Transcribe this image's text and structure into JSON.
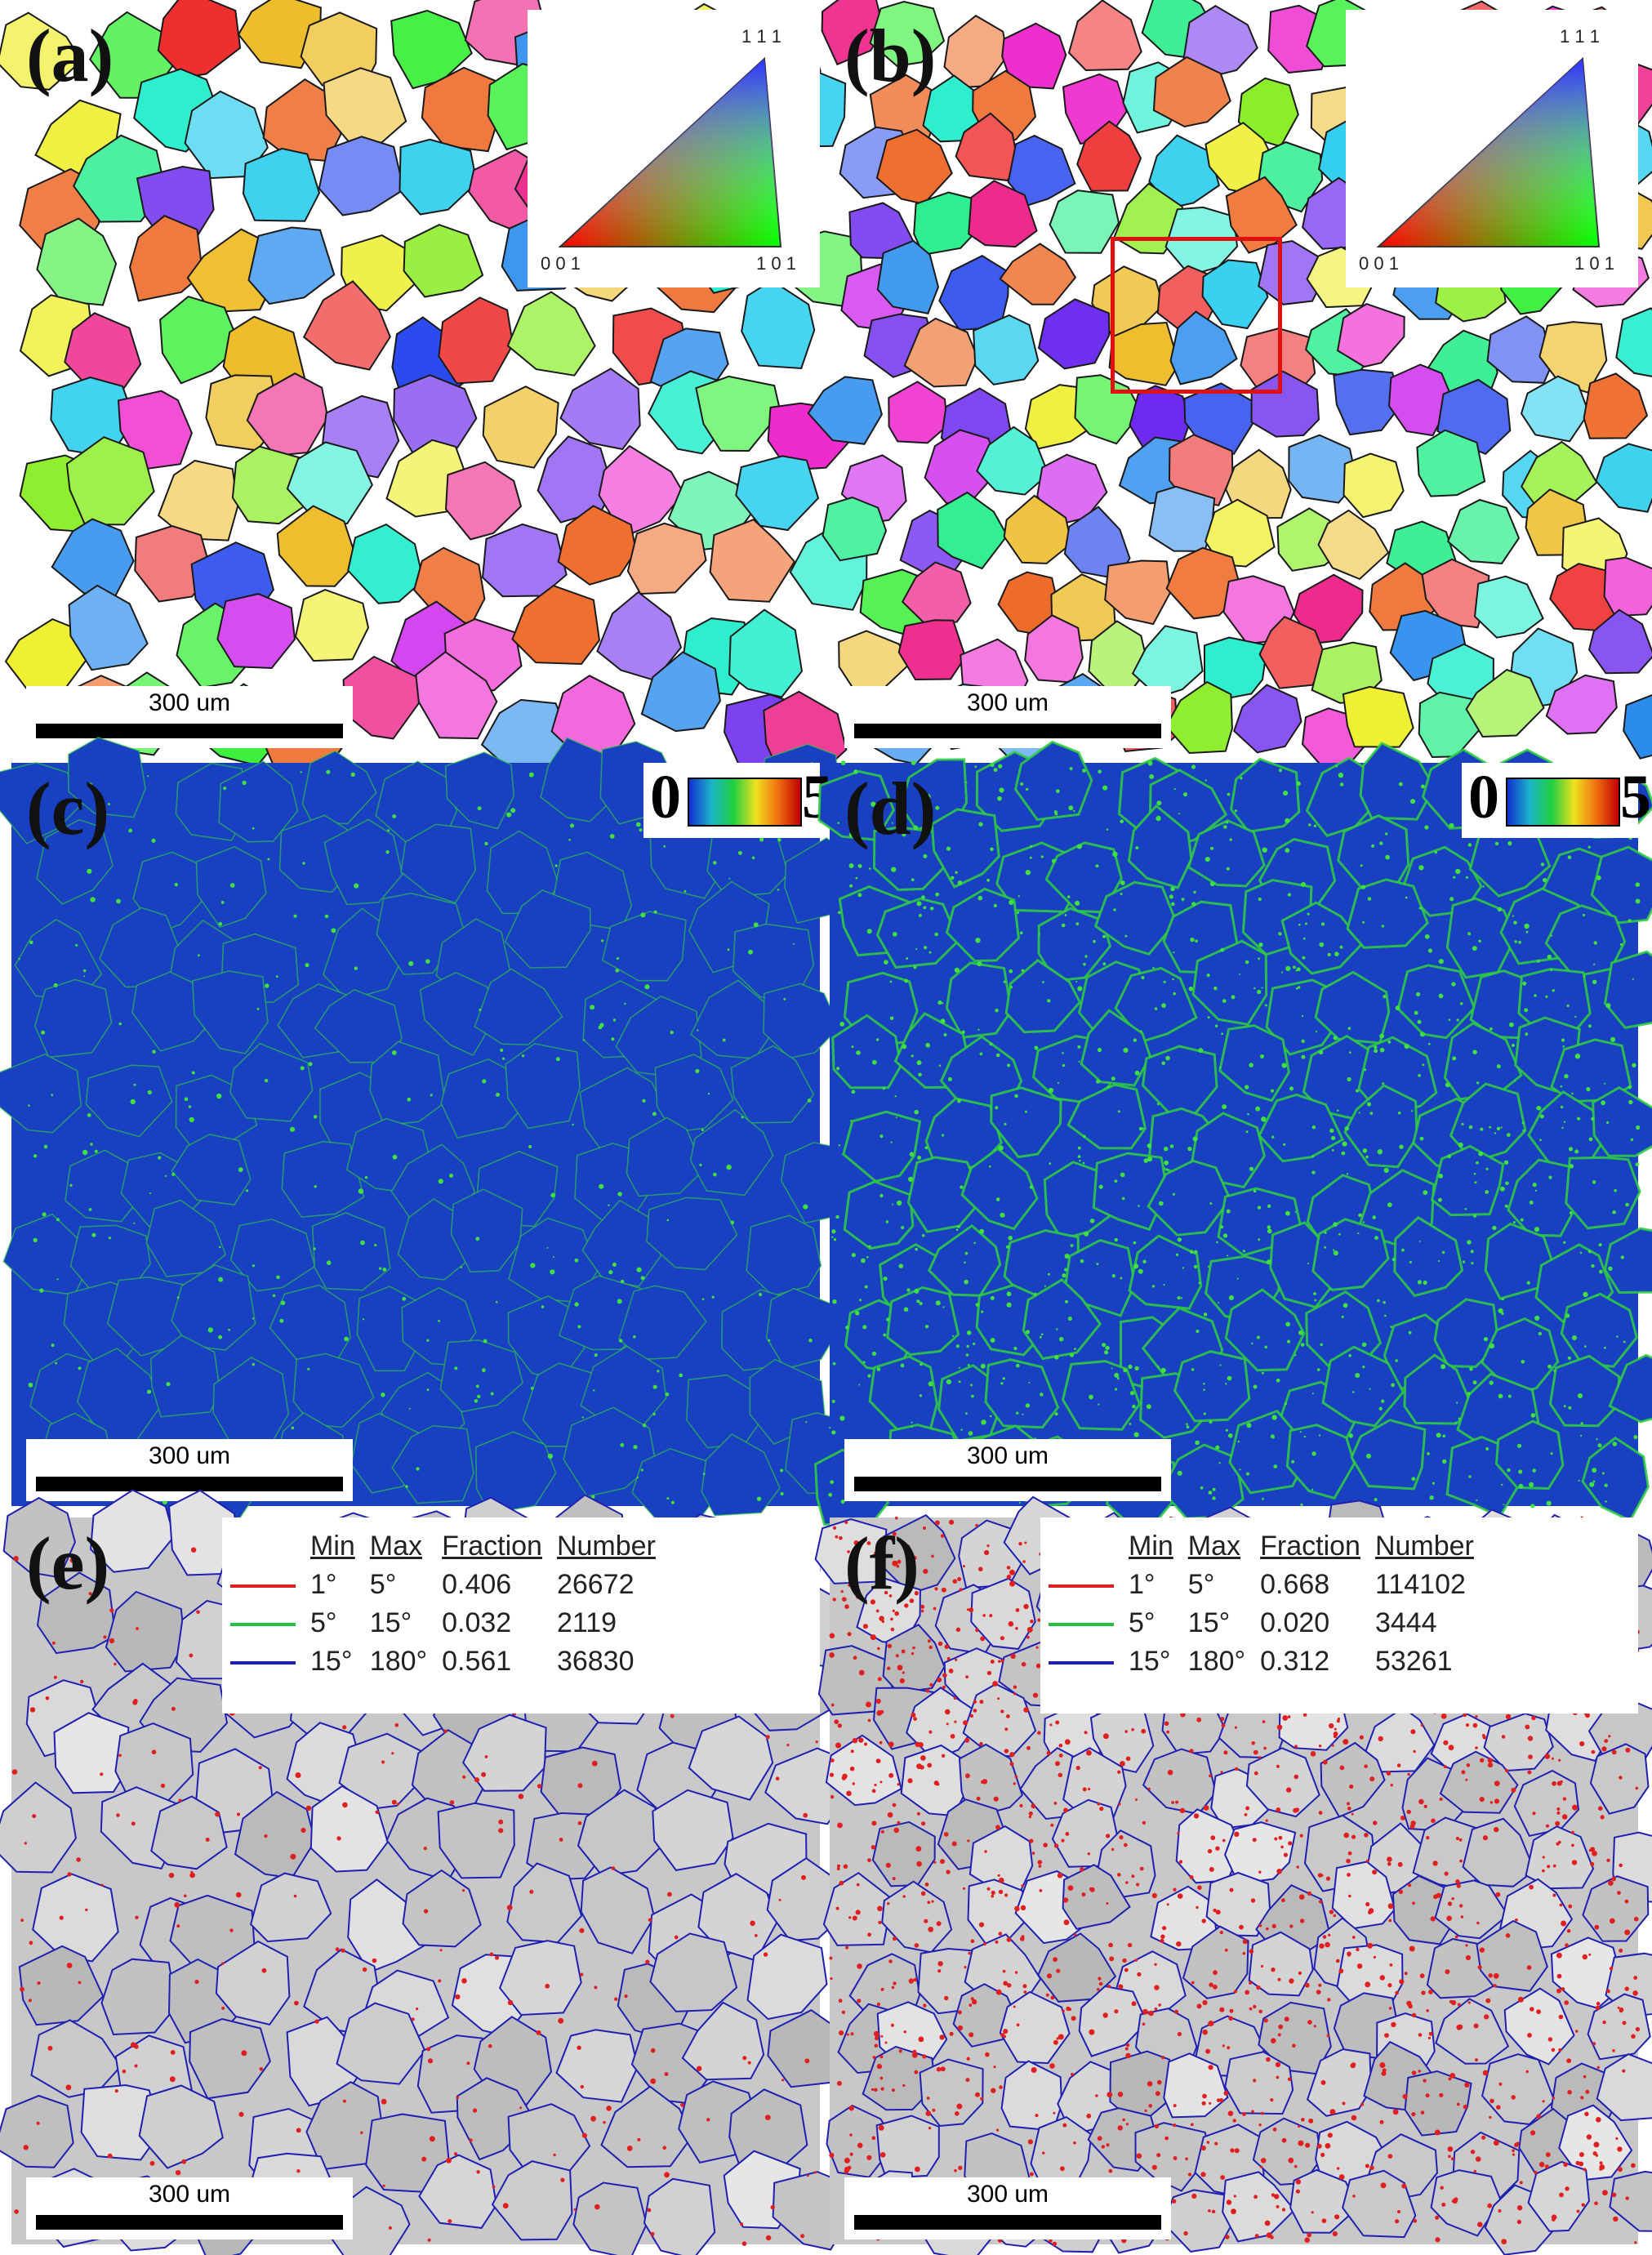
{
  "panels": [
    {
      "label": "(a)",
      "type": "ipf",
      "scale": "300 um",
      "ipf": {
        "top": "1 1 1",
        "left": "0 0 1",
        "right": "1 0 1"
      }
    },
    {
      "label": "(b)",
      "type": "ipf",
      "scale": "300 um",
      "ipf": {
        "top": "1 1 1",
        "left": "0 0 1",
        "right": "1 0 1"
      }
    },
    {
      "label": "(c)",
      "type": "kam",
      "scale": "300 um",
      "kam": {
        "min": "0",
        "max": "5"
      }
    },
    {
      "label": "(d)",
      "type": "kam",
      "scale": "300 um",
      "kam": {
        "min": "0",
        "max": "5"
      }
    },
    {
      "label": "(e)",
      "type": "boundary",
      "scale": "300 um",
      "legend": {
        "headers": [
          "",
          "Min",
          "Max",
          "Fraction",
          "Number"
        ],
        "rows": [
          {
            "color": "#e02020",
            "min": "1°",
            "max": "5°",
            "fraction": "0.406",
            "number": "26672"
          },
          {
            "color": "#20c040",
            "min": "5°",
            "max": "15°",
            "fraction": "0.032",
            "number": "2119"
          },
          {
            "color": "#2020b0",
            "min": "15°",
            "max": "180°",
            "fraction": "0.561",
            "number": "36830"
          }
        ]
      }
    },
    {
      "label": "(f)",
      "type": "boundary",
      "scale": "300 um",
      "legend": {
        "headers": [
          "",
          "Min",
          "Max",
          "Fraction",
          "Number"
        ],
        "rows": [
          {
            "color": "#e02020",
            "min": "1°",
            "max": "5°",
            "fraction": "0.668",
            "number": "114102"
          },
          {
            "color": "#20c040",
            "min": "5°",
            "max": "15°",
            "fraction": "0.020",
            "number": "3444"
          },
          {
            "color": "#2020b0",
            "min": "15°",
            "max": "180°",
            "fraction": "0.312",
            "number": "53261"
          }
        ]
      }
    }
  ],
  "colors": {
    "kam_bg": "#1840c0",
    "kam_boundary": "#30d040",
    "boundary_gray": "#c8c8c8",
    "hagb": "#2020b0",
    "lagb": "#e02020",
    "highlight_box": "#e01010"
  }
}
